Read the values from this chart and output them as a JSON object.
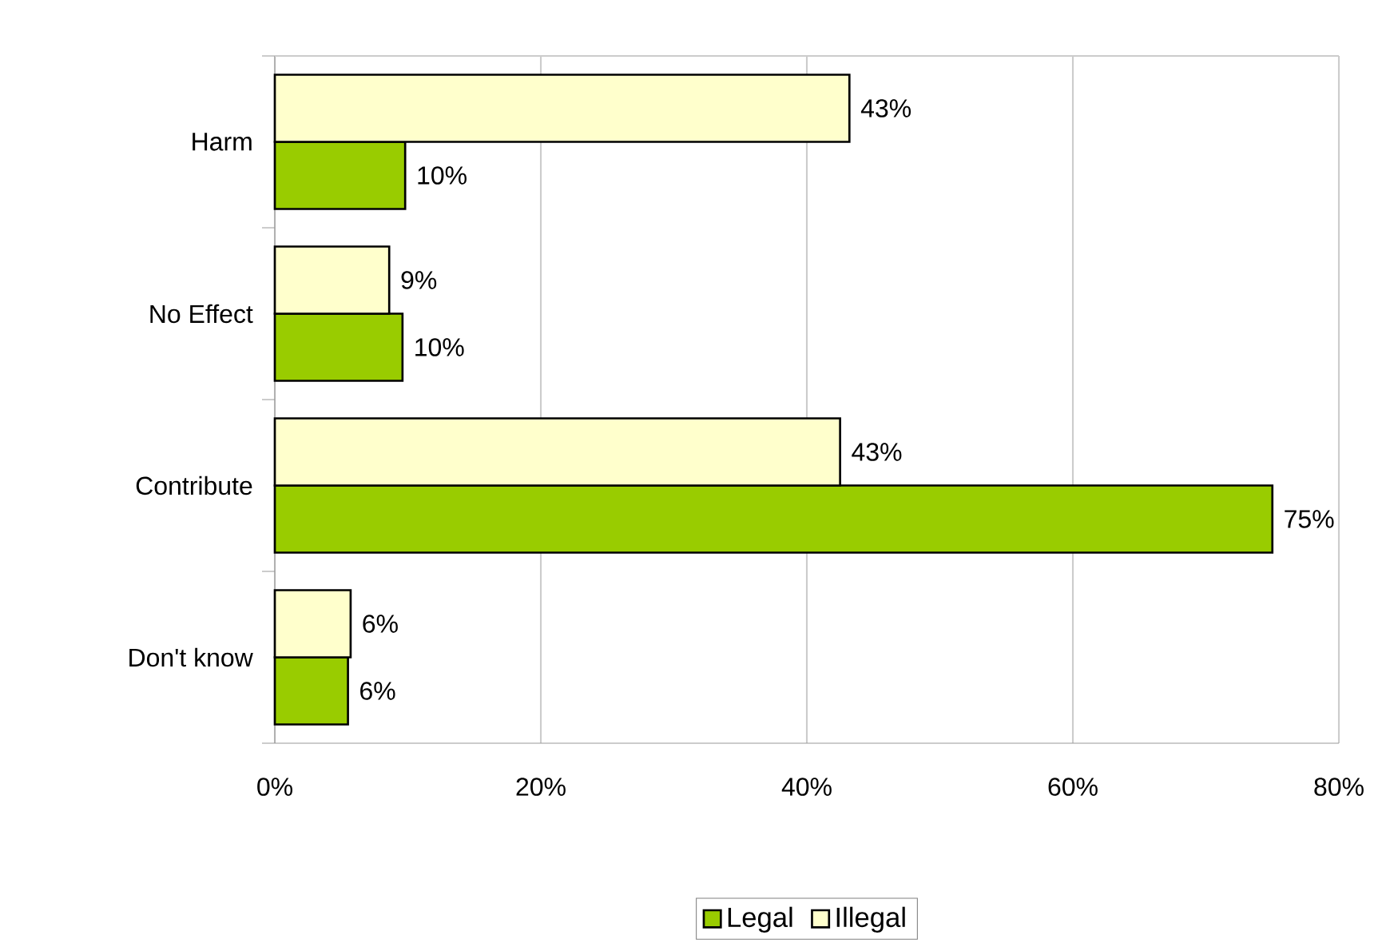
{
  "chart_data": {
    "type": "bar",
    "orientation": "horizontal",
    "categories": [
      "Harm",
      "No Effect",
      "Contribute",
      "Don't know"
    ],
    "series": [
      {
        "name": "Legal",
        "color": "#99cc00",
        "values": [
          9.8,
          9.6,
          75,
          5.5
        ],
        "value_labels": [
          "10%",
          "10%",
          "75%",
          "6%"
        ]
      },
      {
        "name": "Illegal",
        "color": "#ffffcc",
        "values": [
          43.2,
          8.6,
          42.5,
          5.7
        ],
        "value_labels": [
          "43%",
          "9%",
          "43%",
          "6%"
        ]
      }
    ],
    "xlim": [
      0,
      80
    ],
    "xticks": [
      {
        "value": 0,
        "label": "0%"
      },
      {
        "value": 20,
        "label": "20%"
      },
      {
        "value": 40,
        "label": "40%"
      },
      {
        "value": 60,
        "label": "60%"
      },
      {
        "value": 80,
        "label": "80%"
      }
    ],
    "grid": "x",
    "legend": "bottom"
  }
}
